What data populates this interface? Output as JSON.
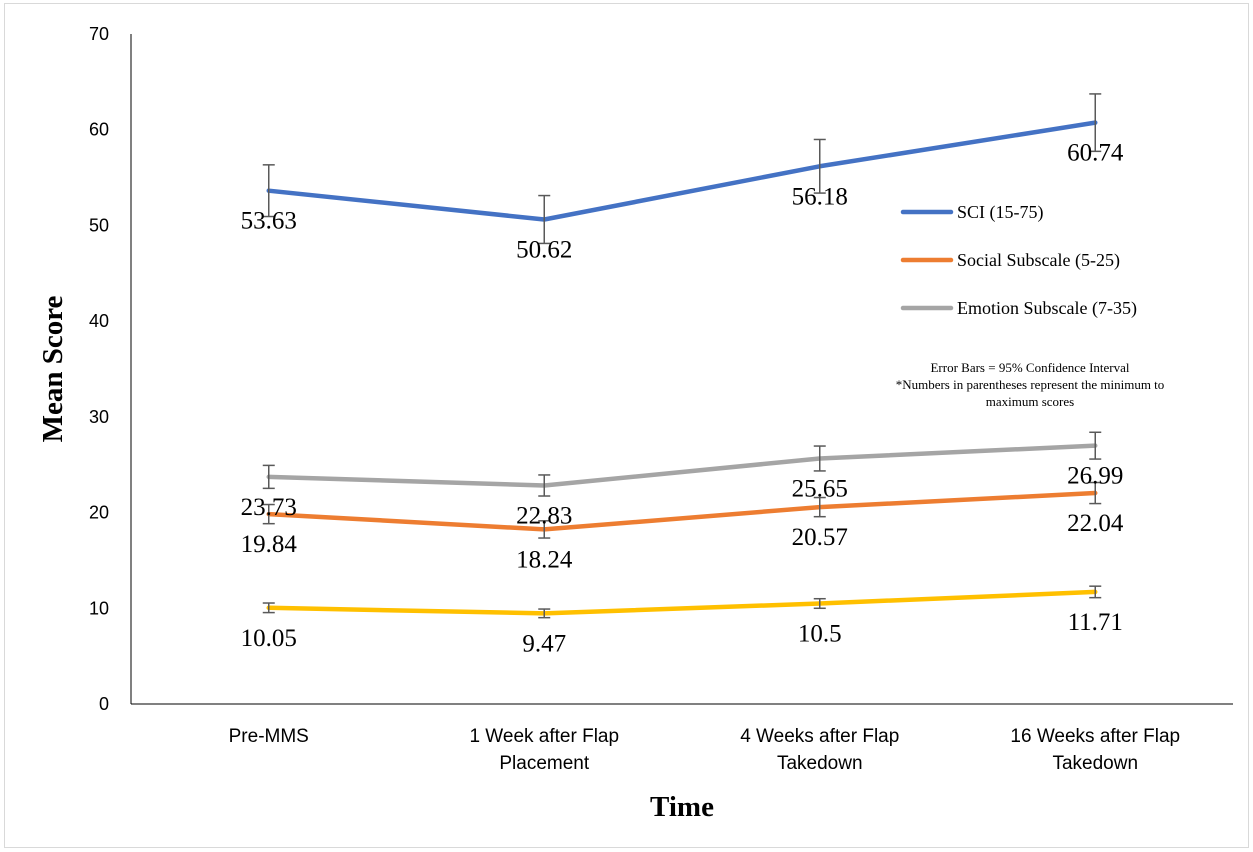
{
  "chart_data": {
    "type": "line",
    "xlabel": "Time",
    "ylabel": "Mean Score",
    "ylim": [
      0,
      70
    ],
    "yticks": [
      "0",
      "10",
      "20",
      "30",
      "40",
      "50",
      "60",
      "70"
    ],
    "categories": [
      [
        "Pre-MMS"
      ],
      [
        "1 Week after Flap",
        "Placement"
      ],
      [
        "4 Weeks after Flap",
        "Takedown"
      ],
      [
        "16 Weeks after Flap",
        "Takedown"
      ]
    ],
    "series": [
      {
        "name": "SCI (15-75)",
        "color": "#4472c4",
        "values": [
          53.63,
          50.62,
          56.18,
          60.74
        ],
        "labels": [
          "53.63",
          "50.62",
          "56.18",
          "60.74"
        ],
        "error": [
          2.7,
          2.5,
          2.8,
          3.0
        ]
      },
      {
        "name": "Social Subscale (5-25)",
        "color": "#ed7d31",
        "values": [
          19.84,
          18.24,
          20.57,
          22.04
        ],
        "labels": [
          "19.84",
          "18.24",
          "20.57",
          "22.04"
        ],
        "error": [
          1.0,
          0.9,
          1.0,
          1.1
        ]
      },
      {
        "name": "Emotion Subscale (7-35)",
        "color": "#a5a5a5",
        "values": [
          23.73,
          22.83,
          25.65,
          26.99
        ],
        "labels": [
          "23.73",
          "22.83",
          "25.65",
          "26.99"
        ],
        "error": [
          1.2,
          1.1,
          1.3,
          1.4
        ]
      },
      {
        "name": "",
        "color": "#ffc000",
        "values": [
          10.05,
          9.47,
          10.5,
          11.71
        ],
        "labels": [
          "10.05",
          "9.47",
          "10.5",
          "11.71"
        ],
        "error": [
          0.5,
          0.45,
          0.5,
          0.6
        ]
      }
    ],
    "legend_position": "right",
    "annotations": [
      "Error Bars = 95% Confidence Interval",
      "*Numbers in parentheses represent the minimum to",
      "maximum scores"
    ],
    "grid": false
  }
}
